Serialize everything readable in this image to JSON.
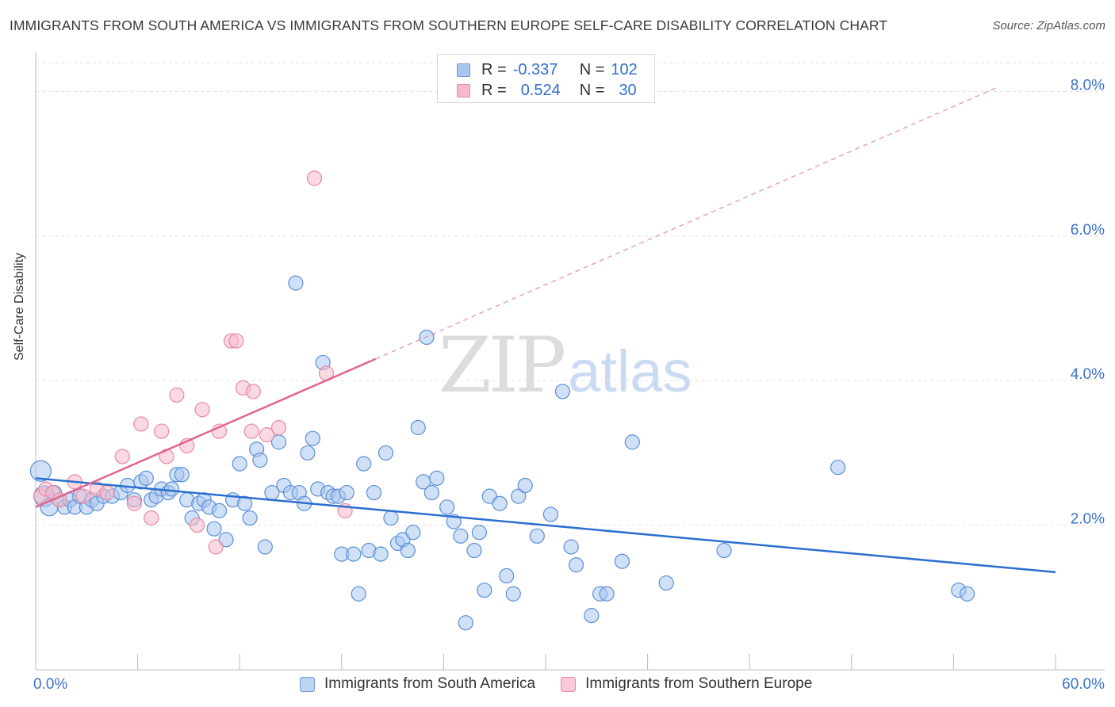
{
  "title": "IMMIGRANTS FROM SOUTH AMERICA VS IMMIGRANTS FROM SOUTHERN EUROPE SELF-CARE DISABILITY CORRELATION CHART",
  "source": "Source: ZipAtlas.com",
  "watermark": {
    "zip": "ZIP",
    "atlas": "atlas"
  },
  "legend": {
    "r_label": "R =",
    "n_label": "N =",
    "rows": [
      {
        "r": "-0.337",
        "n": "102",
        "fill": "#a9c6ee",
        "stroke": "#6f9ad8"
      },
      {
        "r": "0.524",
        "n": "30",
        "fill": "#f6b9cb",
        "stroke": "#e88aa6"
      }
    ]
  },
  "bottom_legend": [
    {
      "label": "Immigrants from South America",
      "fill": "#bcd3f2",
      "stroke": "#6f9ad8"
    },
    {
      "label": "Immigrants from Southern Europe",
      "fill": "#f8c9d7",
      "stroke": "#e88aa6"
    }
  ],
  "chart_data": {
    "type": "scatter",
    "title": "IMMIGRANTS FROM SOUTH AMERICA VS IMMIGRANTS FROM SOUTHERN EUROPE SELF-CARE DISABILITY CORRELATION CHART",
    "xlabel": "",
    "ylabel": "Self-Care Disability",
    "xlim": [
      0,
      60
    ],
    "ylim": [
      0,
      8.4
    ],
    "x_tick_labels": {
      "0": "0.0%",
      "60": "60.0%"
    },
    "y_ticks": [
      2,
      4,
      6,
      8
    ],
    "y_tick_labels": [
      "2.0%",
      "4.0%",
      "6.0%",
      "8.0%"
    ],
    "grid": "horizontal dashed",
    "legend_position": "top-center",
    "series": [
      {
        "name": "Immigrants from South America",
        "color": "#5b8fd6",
        "fill": "#a9c6ee",
        "trend": {
          "x": [
            0,
            60
          ],
          "y": [
            2.65,
            1.35
          ],
          "style": "solid",
          "color": "#2a6fd0"
        },
        "points": [
          [
            0.3,
            2.75,
            13
          ],
          [
            0.5,
            2.4,
            13
          ],
          [
            0.8,
            2.25,
            11
          ],
          [
            1.1,
            2.45,
            9
          ],
          [
            1.4,
            2.35,
            9
          ],
          [
            1.7,
            2.25,
            9
          ],
          [
            2.0,
            2.35,
            9
          ],
          [
            2.3,
            2.25,
            9
          ],
          [
            2.6,
            2.4,
            9
          ],
          [
            3.0,
            2.25,
            9
          ],
          [
            3.3,
            2.35,
            9
          ],
          [
            3.6,
            2.3,
            9
          ],
          [
            4.0,
            2.4,
            9
          ],
          [
            4.5,
            2.4,
            9
          ],
          [
            5.0,
            2.45,
            9
          ],
          [
            5.4,
            2.55,
            9
          ],
          [
            5.8,
            2.35,
            9
          ],
          [
            6.2,
            2.6,
            9
          ],
          [
            6.5,
            2.65,
            9
          ],
          [
            6.8,
            2.35,
            9
          ],
          [
            7.1,
            2.4,
            9
          ],
          [
            7.4,
            2.5,
            9
          ],
          [
            7.8,
            2.45,
            9
          ],
          [
            8.0,
            2.5,
            9
          ],
          [
            8.3,
            2.7,
            9
          ],
          [
            8.6,
            2.7,
            9
          ],
          [
            8.9,
            2.35,
            9
          ],
          [
            9.2,
            2.1,
            9
          ],
          [
            9.6,
            2.3,
            9
          ],
          [
            9.9,
            2.35,
            9
          ],
          [
            10.2,
            2.25,
            9
          ],
          [
            10.5,
            1.95,
            9
          ],
          [
            10.8,
            2.2,
            9
          ],
          [
            11.2,
            1.8,
            9
          ],
          [
            11.6,
            2.35,
            9
          ],
          [
            12.0,
            2.85,
            9
          ],
          [
            12.3,
            2.3,
            9
          ],
          [
            12.6,
            2.1,
            9
          ],
          [
            13.0,
            3.05,
            9
          ],
          [
            13.2,
            2.9,
            9
          ],
          [
            13.5,
            1.7,
            9
          ],
          [
            13.9,
            2.45,
            9
          ],
          [
            14.3,
            3.15,
            9
          ],
          [
            14.6,
            2.55,
            9
          ],
          [
            15.0,
            2.45,
            9
          ],
          [
            15.3,
            5.35,
            9
          ],
          [
            15.5,
            2.45,
            9
          ],
          [
            15.8,
            2.3,
            9
          ],
          [
            16.0,
            3.0,
            9
          ],
          [
            16.3,
            3.2,
            9
          ],
          [
            16.6,
            2.5,
            9
          ],
          [
            16.9,
            4.25,
            9
          ],
          [
            17.2,
            2.45,
            9
          ],
          [
            17.5,
            2.4,
            9
          ],
          [
            17.8,
            2.4,
            9
          ],
          [
            18.0,
            1.6,
            9
          ],
          [
            18.3,
            2.45,
            9
          ],
          [
            18.7,
            1.6,
            9
          ],
          [
            19.0,
            1.05,
            9
          ],
          [
            19.3,
            2.85,
            9
          ],
          [
            19.6,
            1.65,
            9
          ],
          [
            19.9,
            2.45,
            9
          ],
          [
            20.3,
            1.6,
            9
          ],
          [
            20.6,
            3.0,
            9
          ],
          [
            20.9,
            2.1,
            9
          ],
          [
            21.3,
            1.75,
            9
          ],
          [
            21.6,
            1.8,
            9
          ],
          [
            21.9,
            1.65,
            9
          ],
          [
            22.2,
            1.9,
            9
          ],
          [
            22.5,
            3.35,
            9
          ],
          [
            22.8,
            2.6,
            9
          ],
          [
            23.0,
            4.6,
            9
          ],
          [
            23.3,
            2.45,
            9
          ],
          [
            23.6,
            2.65,
            9
          ],
          [
            24.2,
            2.25,
            9
          ],
          [
            24.6,
            2.05,
            9
          ],
          [
            25.0,
            1.85,
            9
          ],
          [
            25.3,
            0.65,
            9
          ],
          [
            25.8,
            1.65,
            9
          ],
          [
            26.1,
            1.9,
            9
          ],
          [
            26.4,
            1.1,
            9
          ],
          [
            26.7,
            2.4,
            9
          ],
          [
            27.3,
            2.3,
            9
          ],
          [
            27.7,
            1.3,
            9
          ],
          [
            28.1,
            1.05,
            9
          ],
          [
            28.4,
            2.4,
            9
          ],
          [
            28.8,
            2.55,
            9
          ],
          [
            29.5,
            1.85,
            9
          ],
          [
            30.3,
            2.15,
            9
          ],
          [
            31.0,
            3.85,
            9
          ],
          [
            31.5,
            1.7,
            9
          ],
          [
            31.8,
            1.45,
            9
          ],
          [
            32.7,
            0.75,
            9
          ],
          [
            33.2,
            1.05,
            9
          ],
          [
            33.6,
            1.05,
            9
          ],
          [
            34.5,
            1.5,
            9
          ],
          [
            35.1,
            3.15,
            9
          ],
          [
            37.1,
            1.2,
            9
          ],
          [
            40.5,
            1.65,
            9
          ],
          [
            47.2,
            2.8,
            9
          ],
          [
            54.3,
            1.1,
            9
          ],
          [
            54.8,
            1.05,
            9
          ]
        ]
      },
      {
        "name": "Immigrants from Southern Europe",
        "color": "#e88aa6",
        "fill": "#f6b9cb",
        "trend": {
          "x": [
            0,
            20
          ],
          "y": [
            2.25,
            4.3
          ],
          "style": "solid",
          "extension": {
            "x": [
              20,
              56.5
            ],
            "y": [
              4.3,
              8.05
            ],
            "style": "dashed"
          },
          "color": "#e2648e"
        },
        "points": [
          [
            0.3,
            2.4,
            9
          ],
          [
            0.6,
            2.5,
            9
          ],
          [
            1.0,
            2.45,
            9
          ],
          [
            1.4,
            2.35,
            9
          ],
          [
            2.3,
            2.6,
            9
          ],
          [
            2.8,
            2.4,
            9
          ],
          [
            3.6,
            2.5,
            9
          ],
          [
            4.2,
            2.45,
            9
          ],
          [
            5.1,
            2.95,
            9
          ],
          [
            5.8,
            2.3,
            9
          ],
          [
            6.2,
            3.4,
            9
          ],
          [
            6.8,
            2.1,
            9
          ],
          [
            7.4,
            3.3,
            9
          ],
          [
            7.7,
            2.95,
            9
          ],
          [
            8.3,
            3.8,
            9
          ],
          [
            8.9,
            3.1,
            9
          ],
          [
            9.5,
            2.0,
            9
          ],
          [
            9.8,
            3.6,
            9
          ],
          [
            10.6,
            1.7,
            9
          ],
          [
            10.8,
            3.3,
            9
          ],
          [
            11.5,
            4.55,
            9
          ],
          [
            11.8,
            4.55,
            9
          ],
          [
            12.2,
            3.9,
            9
          ],
          [
            12.7,
            3.3,
            9
          ],
          [
            12.8,
            3.85,
            9
          ],
          [
            13.6,
            3.25,
            9
          ],
          [
            14.3,
            3.35,
            9
          ],
          [
            16.4,
            6.8,
            9
          ],
          [
            17.1,
            4.1,
            9
          ],
          [
            18.2,
            2.2,
            9
          ]
        ]
      }
    ]
  }
}
